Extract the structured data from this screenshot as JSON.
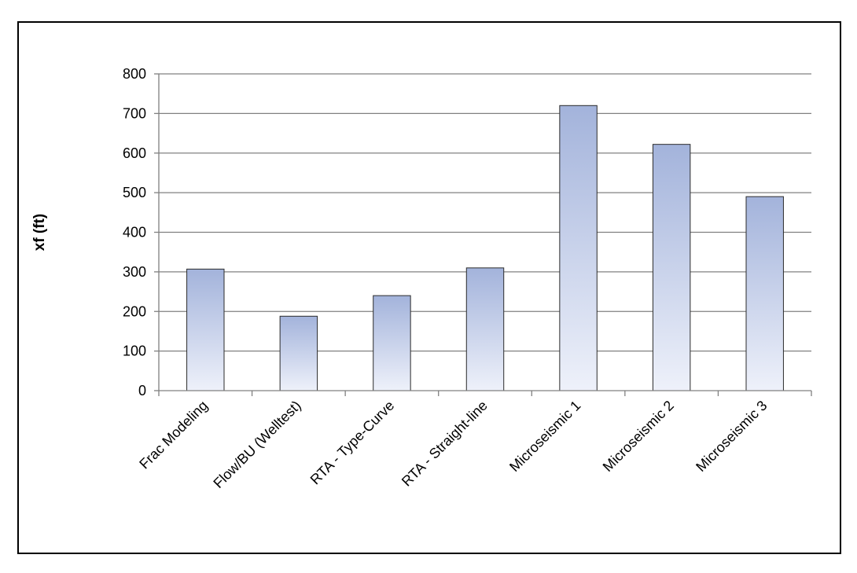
{
  "chart_data": {
    "type": "bar",
    "title": "",
    "xlabel": "",
    "ylabel": "xf (ft)",
    "categories": [
      "Frac Modeling",
      "Flow/BU (Welltest)",
      "RTA - Type-Curve",
      "RTA - Straight-line",
      "Microseismic 1",
      "Microseismic 2",
      "Microseismic 3"
    ],
    "values": [
      307,
      188,
      240,
      310,
      720,
      622,
      490
    ],
    "ylim": [
      0,
      800
    ],
    "yticks": [
      0,
      100,
      200,
      300,
      400,
      500,
      600,
      700,
      800
    ],
    "grid": true,
    "legend": "none",
    "colors": {
      "bar_top": "#a3b3db",
      "bar_bottom": "#eef1fa",
      "bar_border": "#2b2b2b",
      "grid": "#808080",
      "axis": "#808080"
    }
  }
}
